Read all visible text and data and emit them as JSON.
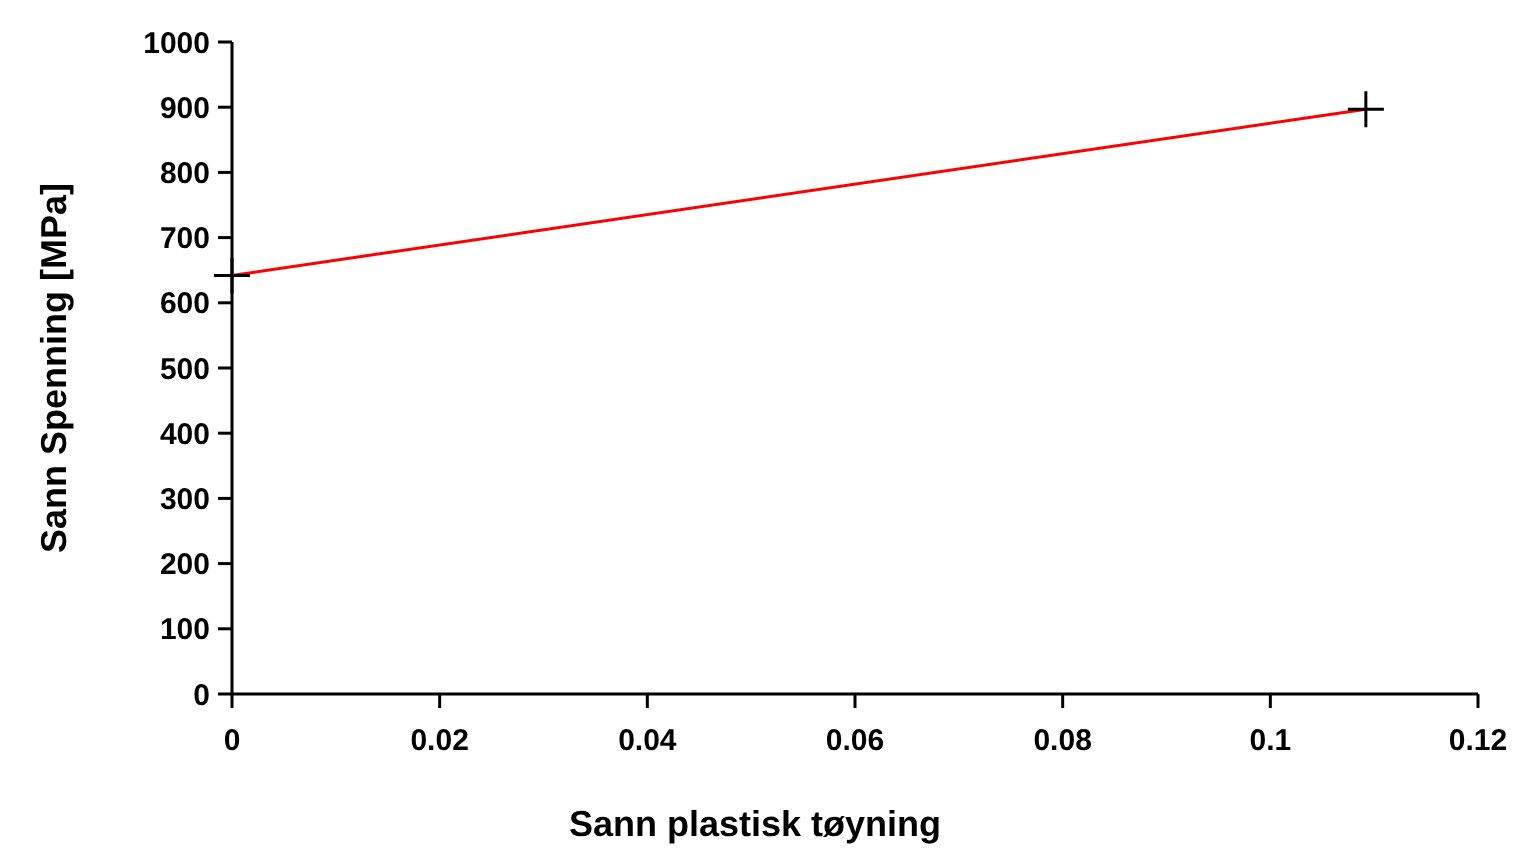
{
  "chart_data": {
    "type": "line",
    "xlabel": "Sann plastisk tøyning",
    "ylabel": "Sann Spenning [MPa]",
    "xlim": [
      0,
      0.12
    ],
    "xticks": [
      0,
      0.02,
      0.04,
      0.06,
      0.08,
      0.1,
      0.12
    ],
    "ylim": [
      0,
      1000
    ],
    "yticks": [
      0,
      100,
      200,
      300,
      400,
      500,
      600,
      700,
      800,
      900,
      1000
    ],
    "grid": false,
    "x": [
      0,
      0.1092
    ],
    "series": [
      {
        "color": "#ff0000",
        "values": [
          642,
          897
        ],
        "marker": "none"
      },
      {
        "type": "scatter",
        "color": "#000000",
        "values": [
          642,
          897
        ],
        "marker": "cross"
      }
    ]
  }
}
